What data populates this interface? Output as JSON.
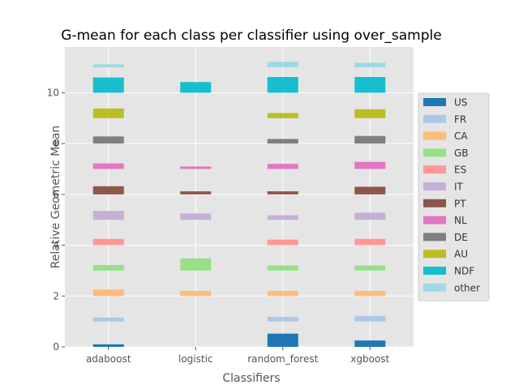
{
  "chart_data": {
    "type": "bar",
    "title": "G-mean for each class per classifier using over_sample",
    "xlabel": "Classifiers",
    "ylabel": "Relative Geometric Mean",
    "ylim": [
      0,
      11.8
    ],
    "yticks": [
      0,
      2,
      4,
      6,
      8,
      10
    ],
    "grid": true,
    "legend": "right",
    "categories": [
      "adaboost",
      "logistic",
      "random_forest",
      "xgboost"
    ],
    "series": [
      {
        "name": "US",
        "color": "#1f77b4",
        "base": 0,
        "values": [
          0.1,
          0.0,
          0.52,
          0.25
        ]
      },
      {
        "name": "FR",
        "color": "#aec7e8",
        "base": 1,
        "values": [
          0.15,
          0.0,
          0.18,
          0.22
        ]
      },
      {
        "name": "CA",
        "color": "#ffbb78",
        "base": 2,
        "values": [
          0.25,
          0.2,
          0.2,
          0.2
        ]
      },
      {
        "name": "GB",
        "color": "#98df8a",
        "base": 3,
        "values": [
          0.22,
          0.48,
          0.2,
          0.2
        ]
      },
      {
        "name": "ES",
        "color": "#ff9896",
        "base": 4,
        "values": [
          0.25,
          0.0,
          0.22,
          0.25
        ]
      },
      {
        "name": "IT",
        "color": "#c5b0d5",
        "base": 5,
        "values": [
          0.35,
          0.25,
          0.18,
          0.28
        ]
      },
      {
        "name": "PT",
        "color": "#8c564b",
        "base": 6,
        "values": [
          0.32,
          0.12,
          0.12,
          0.3
        ]
      },
      {
        "name": "NL",
        "color": "#e377c2",
        "base": 7,
        "values": [
          0.22,
          0.1,
          0.2,
          0.28
        ]
      },
      {
        "name": "DE",
        "color": "#7f7f7f",
        "base": 8,
        "values": [
          0.28,
          0.0,
          0.18,
          0.3
        ]
      },
      {
        "name": "AU",
        "color": "#bcbd22",
        "base": 9,
        "values": [
          0.38,
          0.0,
          0.2,
          0.35
        ]
      },
      {
        "name": "NDF",
        "color": "#17becf",
        "base": 10,
        "values": [
          0.6,
          0.42,
          0.62,
          0.62
        ]
      },
      {
        "name": "other",
        "color": "#9edae5",
        "base": 11,
        "values": [
          0.12,
          0.0,
          0.22,
          0.18
        ]
      }
    ]
  }
}
